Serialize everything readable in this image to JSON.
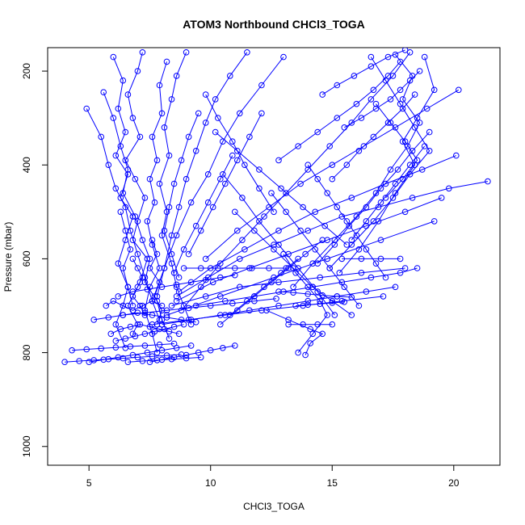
{
  "chart_data": {
    "type": "line",
    "title": "ATOM3 Northbound CHCl3_TOGA",
    "xlabel": "CHCl3_TOGA",
    "ylabel": "Pressure (mbar)",
    "xlim": [
      3.3,
      21.9
    ],
    "ylim": [
      1040,
      150
    ],
    "y_reversed": true,
    "xticks": [
      5,
      10,
      15,
      20
    ],
    "yticks": [
      200,
      400,
      600,
      800,
      1000
    ],
    "grid": false,
    "color": "#0000ff",
    "series": [
      {
        "x": [
          7.2,
          7.0,
          6.6,
          6.8,
          7.1,
          6.5,
          6.9,
          7.3,
          7.0,
          6.8,
          7.4,
          7.1,
          6.6,
          7.0,
          6.8
        ],
        "y": [
          160,
          200,
          250,
          300,
          340,
          390,
          430,
          470,
          520,
          560,
          600,
          650,
          700,
          740,
          760
        ]
      },
      {
        "x": [
          6.0,
          6.4,
          6.2,
          6.5,
          6.1,
          6.6,
          6.3,
          6.8,
          6.5,
          6.2,
          6.6,
          6.4,
          6.1,
          6.5
        ],
        "y": [
          170,
          220,
          280,
          330,
          380,
          420,
          470,
          510,
          560,
          610,
          660,
          700,
          740,
          790
        ]
      },
      {
        "x": [
          8.2,
          7.9,
          8.0,
          7.6,
          7.8,
          7.5,
          7.7,
          7.4,
          7.6,
          7.9,
          7.5,
          7.3,
          7.6,
          7.8
        ],
        "y": [
          180,
          230,
          290,
          340,
          390,
          430,
          480,
          520,
          570,
          620,
          660,
          710,
          760,
          800
        ]
      },
      {
        "x": [
          5.6,
          6.0,
          6.3,
          6.6,
          6.4,
          6.9,
          7.2,
          7.5,
          7.3,
          7.8,
          8.0,
          8.3
        ],
        "y": [
          245,
          300,
          360,
          410,
          460,
          510,
          560,
          600,
          650,
          690,
          730,
          770
        ]
      },
      {
        "x": [
          4.9,
          5.5,
          5.8,
          6.1,
          6.5,
          6.7,
          7.0,
          7.3,
          7.6,
          7.9
        ],
        "y": [
          280,
          340,
          400,
          450,
          490,
          540,
          590,
          640,
          690,
          730
        ]
      },
      {
        "x": [
          9.0,
          8.6,
          8.4,
          8.1,
          8.3,
          7.9,
          8.2,
          8.0,
          8.4,
          8.6,
          8.9,
          9.2
        ],
        "y": [
          160,
          210,
          260,
          320,
          380,
          440,
          500,
          550,
          610,
          660,
          700,
          740
        ]
      },
      {
        "x": [
          11.5,
          10.8,
          10.2,
          9.8,
          9.4,
          9.0,
          8.7,
          8.4,
          8.1,
          7.8
        ],
        "y": [
          160,
          210,
          260,
          310,
          370,
          430,
          490,
          550,
          620,
          680
        ]
      },
      {
        "x": [
          13.0,
          12.1,
          11.2,
          10.5,
          9.9,
          9.2,
          8.6,
          8.1,
          7.6
        ],
        "y": [
          170,
          230,
          290,
          350,
          420,
          480,
          550,
          620,
          690
        ]
      },
      {
        "x": [
          18.2,
          17.5,
          16.6,
          15.8,
          14.9,
          14.0,
          13.1,
          12.2,
          11.3,
          10.4,
          9.6,
          8.8
        ],
        "y": [
          160,
          210,
          260,
          310,
          360,
          410,
          460,
          510,
          560,
          610,
          660,
          710
        ]
      },
      {
        "x": [
          17.6,
          18.3,
          17.9,
          18.6,
          18.1,
          17.4,
          16.8,
          16.0,
          15.1,
          14.2,
          13.4
        ],
        "y": [
          165,
          210,
          260,
          310,
          360,
          410,
          460,
          510,
          560,
          610,
          660
        ]
      },
      {
        "x": [
          18.8,
          19.2,
          18.5,
          17.9,
          18.4,
          17.6,
          16.9,
          16.1,
          15.3
        ],
        "y": [
          170,
          240,
          300,
          350,
          400,
          460,
          520,
          580,
          630
        ]
      },
      {
        "x": [
          16.6,
          17.2,
          17.8,
          18.4,
          19.0,
          18.2,
          17.5,
          16.7,
          15.8,
          14.9
        ],
        "y": [
          170,
          220,
          270,
          320,
          370,
          420,
          470,
          520,
          570,
          620
        ]
      },
      {
        "x": [
          21.4,
          19.8,
          18.3,
          16.9,
          15.4,
          14.0,
          12.6,
          11.2,
          9.9,
          8.6
        ],
        "y": [
          435,
          450,
          470,
          490,
          510,
          540,
          570,
          600,
          640,
          680
        ]
      },
      {
        "x": [
          20.1,
          18.7,
          17.2,
          15.8,
          14.3,
          12.8,
          11.4,
          10.0,
          8.7
        ],
        "y": [
          380,
          410,
          440,
          470,
          500,
          540,
          580,
          620,
          670
        ]
      },
      {
        "x": [
          20.2,
          18.9,
          17.6,
          16.3,
          15.0,
          13.7,
          12.4,
          11.1,
          9.8
        ],
        "y": [
          240,
          280,
          320,
          360,
          400,
          440,
          490,
          540,
          600
        ]
      },
      {
        "x": [
          19.5,
          18.0,
          16.4,
          14.8,
          13.2,
          11.6,
          10.1,
          8.6
        ],
        "y": [
          470,
          500,
          530,
          560,
          590,
          620,
          650,
          690
        ]
      },
      {
        "x": [
          18.0,
          16.2,
          14.5,
          12.8,
          11.2,
          9.8,
          8.4
        ],
        "y": [
          620,
          630,
          640,
          650,
          660,
          680,
          700
        ]
      },
      {
        "x": [
          17.1,
          15.4,
          13.8,
          12.1,
          10.6,
          9.1,
          7.6
        ],
        "y": [
          680,
          690,
          700,
          710,
          720,
          730,
          740
        ]
      },
      {
        "x": [
          19.2,
          17.0,
          14.8,
          12.6,
          10.4,
          8.2
        ],
        "y": [
          520,
          560,
          600,
          640,
          680,
          720
        ]
      },
      {
        "x": [
          14.0,
          14.4,
          14.8,
          15.2,
          15.6,
          16.0,
          16.4,
          16.8,
          17.2
        ],
        "y": [
          400,
          430,
          460,
          490,
          520,
          550,
          580,
          610,
          640
        ]
      },
      {
        "x": [
          12.5,
          13.1,
          13.7,
          14.3,
          14.9,
          15.5,
          16.1
        ],
        "y": [
          460,
          500,
          540,
          580,
          620,
          660,
          700
        ]
      },
      {
        "x": [
          11.0,
          11.8,
          12.6,
          13.4,
          14.2,
          15.0,
          15.8
        ],
        "y": [
          500,
          540,
          580,
          620,
          660,
          690,
          720
        ]
      },
      {
        "x": [
          10.5,
          11.3,
          12.0,
          12.8,
          13.6,
          14.4,
          15.1
        ],
        "y": [
          420,
          470,
          520,
          570,
          620,
          670,
          720
        ]
      },
      {
        "x": [
          13.0,
          13.5,
          14.0,
          14.5,
          14.8,
          14.2,
          13.6
        ],
        "y": [
          590,
          630,
          660,
          690,
          720,
          760,
          800
        ]
      },
      {
        "x": [
          12.3,
          13.2,
          14.1,
          14.6,
          14.1,
          13.9
        ],
        "y": [
          710,
          730,
          750,
          760,
          780,
          805
        ]
      },
      {
        "x": [
          9.4,
          10.6,
          11.8,
          13.0,
          14.2,
          15.4,
          16.6,
          17.8,
          18.5
        ],
        "y": [
          700,
          690,
          680,
          670,
          660,
          650,
          640,
          630,
          620
        ]
      },
      {
        "x": [
          8.0,
          9.2,
          10.4,
          11.6,
          12.8,
          14.0,
          15.2,
          16.4,
          17.6
        ],
        "y": [
          740,
          730,
          720,
          710,
          700,
          690,
          680,
          670,
          660
        ]
      },
      {
        "x": [
          10.2,
          11.1,
          12.0,
          12.9,
          13.8,
          14.7,
          15.6
        ],
        "y": [
          330,
          370,
          410,
          450,
          490,
          530,
          570
        ]
      },
      {
        "x": [
          9.8,
          10.3,
          10.9,
          11.4,
          12.0,
          12.6
        ],
        "y": [
          250,
          300,
          350,
          400,
          450,
          500
        ]
      },
      {
        "x": [
          15.5,
          16.2,
          16.8,
          17.4,
          17.8,
          18.2,
          18.6
        ],
        "y": [
          320,
          300,
          280,
          260,
          240,
          220,
          200
        ]
      },
      {
        "x": [
          15.0,
          15.6,
          16.1,
          16.7,
          17.3,
          17.9,
          18.4
        ],
        "y": [
          430,
          400,
          370,
          340,
          310,
          280,
          250
        ]
      },
      {
        "x": [
          17.8,
          17.3,
          16.7,
          16.0,
          15.2,
          14.4,
          13.6,
          12.8
        ],
        "y": [
          180,
          210,
          240,
          270,
          300,
          330,
          360,
          390
        ]
      },
      {
        "x": [
          6.2,
          6.8,
          7.4,
          8.0,
          8.6,
          9.2,
          9.8,
          10.4,
          11.0
        ],
        "y": [
          680,
          670,
          665,
          660,
          655,
          650,
          645,
          640,
          635
        ]
      },
      {
        "x": [
          6.4,
          7.3,
          8.2,
          9.1,
          10.0,
          10.9,
          11.8,
          12.7
        ],
        "y": [
          720,
          715,
          710,
          705,
          700,
          695,
          690,
          685
        ]
      },
      {
        "x": [
          4.0,
          4.6,
          5.2,
          5.8,
          6.4,
          7.0,
          7.6,
          8.2,
          8.8
        ],
        "y": [
          820,
          818,
          816,
          814,
          812,
          810,
          808,
          806,
          804
        ]
      },
      {
        "x": [
          4.3,
          4.9,
          5.5,
          6.1,
          6.7,
          7.3,
          7.9,
          8.5
        ],
        "y": [
          795,
          793,
          791,
          789,
          787,
          785,
          783,
          781
        ]
      },
      {
        "x": [
          5.0,
          5.6,
          6.2,
          6.8,
          7.4,
          8.0,
          8.6,
          9.2
        ],
        "y": [
          820,
          815,
          810,
          805,
          800,
          795,
          790,
          785
        ]
      },
      {
        "x": [
          5.9,
          6.3,
          6.7,
          7.1,
          7.5,
          7.9,
          8.3,
          8.7
        ],
        "y": [
          760,
          750,
          745,
          740,
          745,
          750,
          755,
          760
        ]
      },
      {
        "x": [
          6.1,
          6.5,
          6.9,
          7.3,
          7.7,
          8.1,
          8.5,
          8.9
        ],
        "y": [
          775,
          770,
          765,
          760,
          755,
          750,
          745,
          740
        ]
      },
      {
        "x": [
          7.5,
          8.0,
          8.5,
          9.0,
          9.5,
          10.0,
          10.5,
          11.0
        ],
        "y": [
          820,
          815,
          810,
          805,
          800,
          795,
          790,
          785
        ]
      },
      {
        "x": [
          6.6,
          7.2,
          7.8,
          8.4,
          9.0,
          9.6
        ],
        "y": [
          820,
          818,
          816,
          814,
          812,
          810
        ]
      },
      {
        "x": [
          5.7,
          6.0,
          6.4,
          6.8,
          7.2,
          7.6,
          8.0
        ],
        "y": [
          700,
          690,
          700,
          710,
          700,
          690,
          700
        ]
      },
      {
        "x": [
          5.2,
          5.8,
          6.4,
          7.0,
          7.6,
          8.2,
          8.8,
          9.4
        ],
        "y": [
          730,
          725,
          720,
          715,
          720,
          725,
          730,
          735
        ]
      },
      {
        "x": [
          12.8,
          13.4,
          14.0,
          14.6,
          15.2,
          15.8
        ],
        "y": [
          670,
          672,
          675,
          678,
          680,
          682
        ]
      },
      {
        "x": [
          13.5,
          14.0,
          14.5,
          15.0,
          15.5
        ],
        "y": [
          700,
          698,
          696,
          694,
          692
        ]
      },
      {
        "x": [
          13.2,
          13.8,
          14.4,
          15.0
        ],
        "y": [
          740,
          740,
          740,
          740
        ]
      },
      {
        "x": [
          6.8,
          7.0,
          7.2,
          7.0,
          6.8,
          7.1,
          7.3
        ],
        "y": [
          600,
          620,
          640,
          660,
          680,
          700,
          720
        ]
      },
      {
        "x": [
          7.6,
          7.8,
          7.5,
          7.9,
          7.7,
          8.0,
          7.8
        ],
        "y": [
          560,
          590,
          620,
          650,
          680,
          710,
          740
        ]
      },
      {
        "x": [
          6.3,
          6.5,
          6.7,
          6.4,
          6.6,
          6.8
        ],
        "y": [
          500,
          540,
          580,
          620,
          660,
          700
        ]
      },
      {
        "x": [
          19.0,
          18.3,
          17.7,
          17.0,
          16.4,
          15.7,
          15.1,
          14.4
        ],
        "y": [
          330,
          370,
          410,
          450,
          490,
          530,
          570,
          610
        ]
      },
      {
        "x": [
          17.2,
          17.9,
          18.5,
          18.0,
          17.4,
          16.8
        ],
        "y": [
          470,
          430,
          390,
          350,
          310,
          270
        ]
      },
      {
        "x": [
          15.8,
          16.4,
          17.0,
          17.6,
          18.2,
          18.8
        ],
        "y": [
          560,
          520,
          480,
          440,
          400,
          360
        ]
      },
      {
        "x": [
          14.6,
          15.2,
          15.9,
          16.6,
          17.3,
          18.0
        ],
        "y": [
          250,
          230,
          210,
          190,
          170,
          155
        ]
      },
      {
        "x": [
          9.5,
          9.1,
          8.8,
          8.5,
          8.3,
          8.1,
          8.4,
          8.7
        ],
        "y": [
          290,
          340,
          390,
          440,
          490,
          540,
          590,
          640
        ]
      },
      {
        "x": [
          10.9,
          10.4,
          9.9,
          9.4,
          8.9,
          8.5
        ],
        "y": [
          380,
          430,
          480,
          530,
          580,
          630
        ]
      },
      {
        "x": [
          12.1,
          11.6,
          11.1,
          10.6,
          10.1,
          9.6,
          9.1
        ],
        "y": [
          290,
          340,
          390,
          440,
          490,
          540,
          590
        ]
      },
      {
        "x": [
          14.6,
          13.9,
          13.2,
          12.5,
          11.8,
          11.1,
          10.4
        ],
        "y": [
          560,
          590,
          620,
          650,
          680,
          710,
          740
        ]
      },
      {
        "x": [
          13.6,
          12.9,
          12.2,
          11.5,
          10.8
        ],
        "y": [
          600,
          630,
          660,
          690,
          720
        ]
      },
      {
        "x": [
          8.9,
          9.6,
          10.3,
          11.0,
          11.7,
          12.4,
          13.1
        ],
        "y": [
          620,
          620,
          620,
          620,
          620,
          620,
          620
        ]
      },
      {
        "x": [
          15.4,
          16.2,
          17.0,
          17.8
        ],
        "y": [
          600,
          600,
          600,
          600
        ]
      }
    ]
  }
}
